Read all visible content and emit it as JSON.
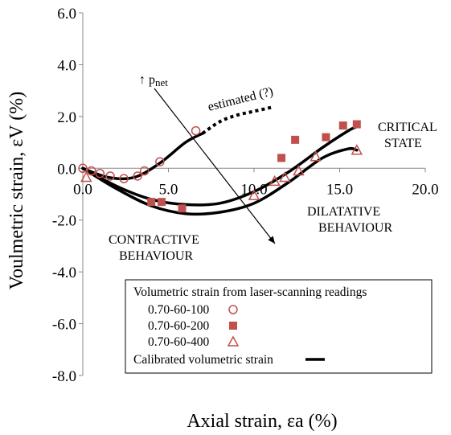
{
  "chart_data": {
    "type": "scatter",
    "xlabel": "Axial strain, εa (%)",
    "ylabel": "Voulmetric strain, εV (%)",
    "xlim": [
      0,
      20
    ],
    "ylim": [
      -8,
      6
    ],
    "x_ticks": [
      "0.0",
      "5.0",
      "10.0",
      "15.0",
      "20.0"
    ],
    "y_ticks": [
      "6.0",
      "4.0",
      "2.0",
      "0.0",
      "-2.0",
      "-4.0",
      "-6.0",
      "-8.0"
    ],
    "grid": false,
    "legend": {
      "placement": "bottom-right",
      "title": "Volumetric strain from laser-scanning readings"
    },
    "series": [
      {
        "name": "0.70-60-100",
        "marker": "circle-open",
        "color": "#c0504d",
        "points": [
          [
            0.0,
            0.0
          ],
          [
            0.5,
            -0.1
          ],
          [
            1.0,
            -0.2
          ],
          [
            1.6,
            -0.3
          ],
          [
            2.4,
            -0.4
          ],
          [
            3.2,
            -0.3
          ],
          [
            3.6,
            -0.1
          ],
          [
            4.5,
            0.25
          ],
          [
            6.6,
            1.45
          ]
        ]
      },
      {
        "name": "0.70-60-200",
        "marker": "square-filled",
        "color": "#c0504d",
        "points": [
          [
            4.0,
            -1.3
          ],
          [
            4.6,
            -1.3
          ],
          [
            5.8,
            -1.55
          ],
          [
            11.6,
            0.4
          ],
          [
            12.4,
            1.1
          ],
          [
            14.2,
            1.2
          ],
          [
            15.2,
            1.65
          ],
          [
            16.0,
            1.7
          ]
        ]
      },
      {
        "name": "0.70-60-400",
        "marker": "triangle-open",
        "color": "#c0504d",
        "points": [
          [
            0.2,
            -0.35
          ],
          [
            10.0,
            -1.05
          ],
          [
            11.2,
            -0.5
          ],
          [
            11.8,
            -0.35
          ],
          [
            12.6,
            -0.1
          ],
          [
            13.6,
            0.45
          ],
          [
            16.0,
            0.7
          ]
        ]
      },
      {
        "name": "Calibrated volumetric strain",
        "style": "line",
        "color": "#000000",
        "curves": [
          [
            [
              0.0,
              0.0
            ],
            [
              1.5,
              -0.35
            ],
            [
              3.0,
              -0.35
            ],
            [
              4.5,
              0.2
            ],
            [
              6.0,
              1.0
            ],
            [
              7.0,
              1.35
            ]
          ],
          [
            [
              0.0,
              0.0
            ],
            [
              2.0,
              -0.7
            ],
            [
              4.0,
              -1.2
            ],
            [
              6.0,
              -1.4
            ],
            [
              8.0,
              -1.35
            ],
            [
              10.0,
              -0.9
            ],
            [
              12.0,
              -0.15
            ],
            [
              14.0,
              0.8
            ],
            [
              15.5,
              1.45
            ],
            [
              16.0,
              1.6
            ]
          ],
          [
            [
              0.0,
              0.0
            ],
            [
              2.0,
              -0.8
            ],
            [
              4.0,
              -1.45
            ],
            [
              6.0,
              -1.75
            ],
            [
              8.0,
              -1.7
            ],
            [
              10.0,
              -1.35
            ],
            [
              12.0,
              -0.55
            ],
            [
              14.0,
              0.4
            ],
            [
              15.5,
              0.75
            ],
            [
              16.0,
              0.7
            ]
          ]
        ]
      },
      {
        "name": "estimated (?)",
        "style": "dotted-line",
        "color": "#000000",
        "points": [
          [
            7.0,
            1.35
          ],
          [
            8.0,
            1.8
          ],
          [
            9.0,
            2.05
          ],
          [
            10.0,
            2.2
          ],
          [
            11.0,
            2.35
          ]
        ]
      }
    ],
    "annotations": {
      "pnet_label": "↑ p",
      "pnet_sub": "net",
      "estimated": "estimated (?)",
      "critical_1": "CRITICAL",
      "critical_2": "STATE",
      "dilatative_1": "DILATATIVE",
      "dilatative_2": "BEHAVIOUR",
      "contractive_1": "CONTRACTIVE",
      "contractive_2": "BEHAVIOUR"
    }
  }
}
